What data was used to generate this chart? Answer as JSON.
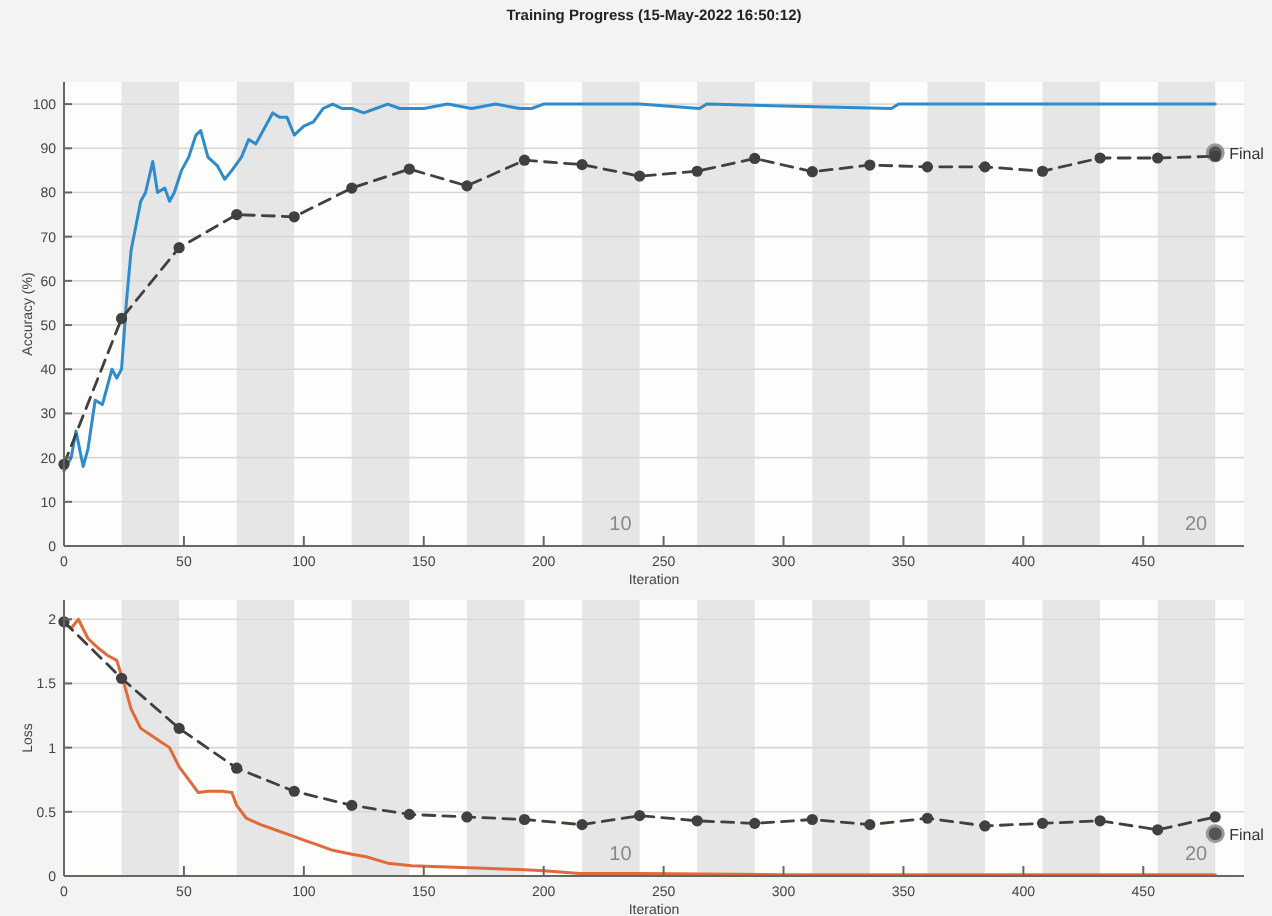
{
  "chart_data": [
    {
      "type": "line",
      "title": "Training Progress (15-May-2022 16:50:12)",
      "xlabel": "Iteration",
      "ylabel": "Accuracy (%)",
      "xlim": [
        0,
        492
      ],
      "xticks": [
        0,
        50,
        100,
        150,
        200,
        250,
        300,
        350,
        400,
        450
      ],
      "ylim": [
        0,
        105
      ],
      "yticks": [
        0,
        10,
        20,
        30,
        40,
        50,
        60,
        70,
        80,
        90,
        100
      ],
      "grid": "y",
      "series": [
        {
          "color": "#2f8ccc",
          "marker": "none",
          "line_style": "solid",
          "x": [
            0,
            3,
            5,
            8,
            10,
            13,
            16,
            20,
            22,
            24,
            26,
            28,
            32,
            34,
            37,
            39,
            42,
            44,
            46,
            49,
            52,
            55,
            57,
            60,
            64,
            67,
            70,
            74,
            77,
            80,
            84,
            87,
            90,
            93,
            96,
            100,
            104,
            108,
            112,
            116,
            120,
            125,
            130,
            135,
            140,
            150,
            160,
            170,
            180,
            190,
            195,
            200,
            240,
            265,
            268,
            345,
            348,
            480
          ],
          "values": [
            17,
            20,
            26,
            18,
            22,
            33,
            32,
            40,
            38,
            40,
            55,
            67,
            78,
            80,
            87,
            80,
            81,
            78,
            80,
            85,
            88,
            93,
            94,
            88,
            86,
            83,
            85,
            88,
            92,
            91,
            95,
            98,
            97,
            97,
            93,
            95,
            96,
            99,
            100,
            99,
            99,
            98,
            99,
            100,
            99,
            99,
            100,
            99,
            100,
            99,
            99,
            100,
            100,
            99,
            100,
            99,
            100,
            100
          ]
        },
        {
          "color": "#404040",
          "marker": "circle",
          "line_style": "dashed",
          "x": [
            0,
            24,
            48,
            72,
            96,
            120,
            144,
            168,
            192,
            216,
            240,
            264,
            288,
            312,
            336,
            360,
            384,
            408,
            432,
            456,
            480
          ],
          "values": [
            18.5,
            51.5,
            67.5,
            75,
            74.5,
            81,
            85.3,
            81.5,
            87.3,
            86.3,
            83.7,
            84.8,
            87.7,
            84.7,
            86.2,
            85.8,
            85.8,
            84.8,
            87.8,
            87.8,
            88.2
          ]
        }
      ],
      "bands": [
        {
          "axis": "x",
          "from": 24,
          "to": 48,
          "color": "#e6e6e6"
        },
        {
          "axis": "x",
          "from": 72,
          "to": 96,
          "color": "#e6e6e6"
        },
        {
          "axis": "x",
          "from": 120,
          "to": 144,
          "color": "#e6e6e6"
        },
        {
          "axis": "x",
          "from": 168,
          "to": 192,
          "color": "#e6e6e6"
        },
        {
          "axis": "x",
          "from": 216,
          "to": 240,
          "color": "#e6e6e6",
          "label": "10"
        },
        {
          "axis": "x",
          "from": 264,
          "to": 288,
          "color": "#e6e6e6"
        },
        {
          "axis": "x",
          "from": 312,
          "to": 336,
          "color": "#e6e6e6"
        },
        {
          "axis": "x",
          "from": 360,
          "to": 384,
          "color": "#e6e6e6"
        },
        {
          "axis": "x",
          "from": 408,
          "to": 432,
          "color": "#e6e6e6"
        },
        {
          "axis": "x",
          "from": 456,
          "to": 480,
          "color": "#e6e6e6",
          "label": "20"
        }
      ],
      "annotations": [
        {
          "text": "Final",
          "x": 480,
          "y": 89
        }
      ]
    },
    {
      "type": "line",
      "xlabel": "Iteration",
      "ylabel": "Loss",
      "xlim": [
        0,
        492
      ],
      "xticks": [
        0,
        50,
        100,
        150,
        200,
        250,
        300,
        350,
        400,
        450
      ],
      "ylim": [
        0,
        2.15
      ],
      "yticks": [
        0,
        0.5,
        1,
        1.5,
        2
      ],
      "grid": "y",
      "series": [
        {
          "color": "#e06a3a",
          "marker": "none",
          "line_style": "solid",
          "x": [
            0,
            3,
            6,
            10,
            14,
            18,
            22,
            25,
            28,
            32,
            36,
            40,
            44,
            48,
            52,
            56,
            60,
            66,
            70,
            72,
            76,
            82,
            88,
            94,
            100,
            106,
            112,
            120,
            126,
            135,
            145,
            160,
            175,
            190,
            200,
            215,
            240,
            300,
            400,
            480
          ],
          "values": [
            1.97,
            1.93,
            2.0,
            1.85,
            1.78,
            1.72,
            1.68,
            1.5,
            1.3,
            1.15,
            1.1,
            1.05,
            1.0,
            0.85,
            0.75,
            0.65,
            0.66,
            0.66,
            0.65,
            0.55,
            0.45,
            0.4,
            0.36,
            0.32,
            0.28,
            0.24,
            0.2,
            0.17,
            0.15,
            0.1,
            0.08,
            0.07,
            0.06,
            0.05,
            0.04,
            0.02,
            0.02,
            0.01,
            0.01,
            0.01
          ]
        },
        {
          "color": "#404040",
          "marker": "circle",
          "line_style": "dashed",
          "x": [
            0,
            24,
            48,
            72,
            96,
            120,
            144,
            168,
            192,
            216,
            240,
            264,
            288,
            312,
            336,
            360,
            384,
            408,
            432,
            456,
            480
          ],
          "values": [
            1.98,
            1.54,
            1.15,
            0.84,
            0.66,
            0.55,
            0.48,
            0.46,
            0.44,
            0.4,
            0.47,
            0.43,
            0.41,
            0.44,
            0.4,
            0.45,
            0.39,
            0.41,
            0.43,
            0.36,
            0.46
          ]
        }
      ],
      "bands": [
        {
          "axis": "x",
          "from": 24,
          "to": 48,
          "color": "#e6e6e6"
        },
        {
          "axis": "x",
          "from": 72,
          "to": 96,
          "color": "#e6e6e6"
        },
        {
          "axis": "x",
          "from": 120,
          "to": 144,
          "color": "#e6e6e6"
        },
        {
          "axis": "x",
          "from": 168,
          "to": 192,
          "color": "#e6e6e6"
        },
        {
          "axis": "x",
          "from": 216,
          "to": 240,
          "color": "#e6e6e6",
          "label": "10"
        },
        {
          "axis": "x",
          "from": 264,
          "to": 288,
          "color": "#e6e6e6"
        },
        {
          "axis": "x",
          "from": 312,
          "to": 336,
          "color": "#e6e6e6"
        },
        {
          "axis": "x",
          "from": 360,
          "to": 384,
          "color": "#e6e6e6"
        },
        {
          "axis": "x",
          "from": 408,
          "to": 432,
          "color": "#e6e6e6"
        },
        {
          "axis": "x",
          "from": 456,
          "to": 480,
          "color": "#e6e6e6",
          "label": "20"
        }
      ],
      "annotations": [
        {
          "text": "Final",
          "x": 480,
          "y": 0.33
        }
      ]
    }
  ]
}
